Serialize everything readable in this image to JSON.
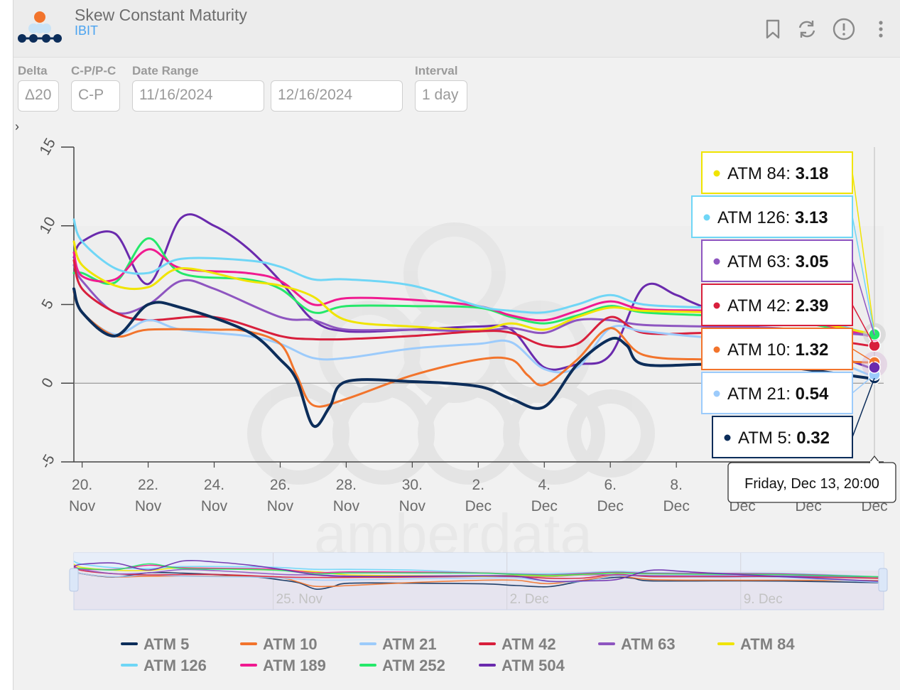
{
  "header": {
    "title": "Skew Constant Maturity",
    "subtitle": "IBIT",
    "icons": [
      "bookmark-icon",
      "refresh-icon",
      "info-icon",
      "more-menu-icon"
    ]
  },
  "controls": {
    "delta": {
      "label": "Delta",
      "value": "Δ20"
    },
    "cp": {
      "label": "C-P/P-C",
      "value": "C-P"
    },
    "date_range": {
      "label": "Date Range",
      "start": "11/16/2024",
      "end": "12/16/2024"
    },
    "interval": {
      "label": "Interval",
      "value": "1 day"
    }
  },
  "expander": "›",
  "watermark": "amberdata",
  "chart_data": {
    "type": "line",
    "x_label_dates": [
      "2024-11-20",
      "2024-11-22",
      "2024-11-24",
      "2024-11-26",
      "2024-11-28",
      "2024-11-30",
      "2024-12-02",
      "2024-12-04",
      "2024-12-06",
      "2024-12-08",
      "2024-12-10",
      "2024-12-12",
      "2024-12-14"
    ],
    "x_tick_lines": [
      [
        "20.",
        "Nov"
      ],
      [
        "22.",
        "Nov"
      ],
      [
        "24.",
        "Nov"
      ],
      [
        "26.",
        "Nov"
      ],
      [
        "28.",
        "Nov"
      ],
      [
        "30.",
        "Nov"
      ],
      [
        "2.",
        "Dec"
      ],
      [
        "4.",
        "Dec"
      ],
      [
        "6.",
        "Dec"
      ],
      [
        "8.",
        "Dec"
      ],
      [
        "",
        "Dec"
      ],
      [
        "",
        "Dec"
      ],
      [
        "",
        "Dec"
      ]
    ],
    "y_ticks": [
      15,
      10,
      5,
      0,
      -5
    ],
    "ylim": [
      -5,
      15
    ],
    "xlim": [
      "2024-11-19T18:00",
      "2024-12-14T00:00"
    ],
    "grid": false,
    "legend_position": "bottom",
    "tooltip": {
      "header": "Friday, Dec 13, 20:00",
      "items": [
        {
          "name": "ATM 84",
          "value": "3.18",
          "color": "#f0e400"
        },
        {
          "name": "ATM 126",
          "value": "3.13",
          "color": "#6fd6f6"
        },
        {
          "name": "ATM 63",
          "value": "3.05",
          "color": "#8e55c0"
        },
        {
          "name": "ATM 42",
          "value": "2.39",
          "color": "#d81f3c"
        },
        {
          "name": "ATM 10",
          "value": "1.32",
          "color": "#f2742c"
        },
        {
          "name": "ATM 21",
          "value": "0.54",
          "color": "#9ccbfb"
        },
        {
          "name": "ATM 5",
          "value": "0.32",
          "color": "#0c2d5a"
        }
      ]
    },
    "navigator_ticks": [
      "25. Nov",
      "2. Dec",
      "9. Dec"
    ],
    "series": [
      {
        "name": "ATM 5",
        "color": "#0c2d5a",
        "width": 4,
        "x": [
          "2024-11-19T18:00",
          "2024-11-20",
          "2024-11-21",
          "2024-11-22",
          "2024-11-23",
          "2024-11-25",
          "2024-11-26",
          "2024-11-26T12:00",
          "2024-11-27",
          "2024-11-27T12:00",
          "2024-11-28",
          "2024-11-30",
          "2024-12-02",
          "2024-12-03",
          "2024-12-04",
          "2024-12-05",
          "2024-12-06",
          "2024-12-06T12:00",
          "2024-12-07",
          "2024-12-09",
          "2024-12-11",
          "2024-12-13T20:00"
        ],
        "y": [
          6.0,
          4.5,
          3.0,
          5.0,
          4.8,
          3.3,
          1.5,
          0.2,
          -2.7,
          -1.5,
          0.1,
          0.1,
          -0.2,
          -1.0,
          -1.5,
          1.2,
          2.8,
          2.4,
          1.2,
          1.2,
          1.1,
          0.32
        ]
      },
      {
        "name": "ATM 10",
        "color": "#f2742c",
        "width": 3,
        "x": [
          "2024-11-19T18:00",
          "2024-11-20",
          "2024-11-21",
          "2024-11-22",
          "2024-11-24",
          "2024-11-25",
          "2024-11-26",
          "2024-11-26T12:00",
          "2024-11-27",
          "2024-11-28",
          "2024-11-30",
          "2024-12-02",
          "2024-12-03",
          "2024-12-03T12:00",
          "2024-12-04",
          "2024-12-05",
          "2024-12-06",
          "2024-12-07",
          "2024-12-09",
          "2024-12-11",
          "2024-12-13T20:00"
        ],
        "y": [
          5.8,
          4.5,
          3.0,
          3.4,
          3.4,
          3.3,
          2.5,
          0.5,
          -1.4,
          -1.0,
          0.5,
          1.5,
          1.5,
          0.5,
          -0.1,
          1.5,
          3.5,
          1.8,
          1.5,
          1.5,
          1.32
        ]
      },
      {
        "name": "ATM 21",
        "color": "#9ccbfb",
        "width": 3,
        "x": [
          "2024-11-19T18:00",
          "2024-11-20",
          "2024-11-21",
          "2024-11-22",
          "2024-11-23",
          "2024-11-25",
          "2024-11-26",
          "2024-11-27",
          "2024-11-28",
          "2024-11-30",
          "2024-12-02",
          "2024-12-03",
          "2024-12-04",
          "2024-12-05",
          "2024-12-06",
          "2024-12-07",
          "2024-12-09",
          "2024-12-11",
          "2024-12-13T20:00"
        ],
        "y": [
          5.9,
          4.5,
          3.1,
          4.0,
          3.4,
          3.0,
          2.5,
          1.6,
          1.6,
          2.2,
          2.5,
          2.6,
          0.9,
          1.0,
          3.5,
          3.3,
          2.9,
          2.8,
          0.54
        ]
      },
      {
        "name": "ATM 42",
        "color": "#d81f3c",
        "width": 3,
        "x": [
          "2024-11-19T18:00",
          "2024-11-20",
          "2024-11-21",
          "2024-11-22",
          "2024-11-24",
          "2024-11-26",
          "2024-11-27",
          "2024-11-28",
          "2024-11-30",
          "2024-12-02",
          "2024-12-03",
          "2024-12-04",
          "2024-12-05",
          "2024-12-06",
          "2024-12-07",
          "2024-12-09",
          "2024-12-11",
          "2024-12-13T20:00"
        ],
        "y": [
          7.8,
          6.0,
          4.5,
          4.0,
          4.2,
          3.0,
          2.8,
          2.8,
          3.0,
          3.3,
          3.2,
          2.4,
          2.5,
          4.2,
          3.2,
          3.2,
          3.2,
          2.39
        ]
      },
      {
        "name": "ATM 63",
        "color": "#8e55c0",
        "width": 3,
        "x": [
          "2024-11-19T18:00",
          "2024-11-20",
          "2024-11-21",
          "2024-11-22",
          "2024-11-23",
          "2024-11-24",
          "2024-11-26",
          "2024-11-27",
          "2024-11-28",
          "2024-11-30",
          "2024-12-02",
          "2024-12-03",
          "2024-12-04",
          "2024-12-05",
          "2024-12-06",
          "2024-12-07",
          "2024-12-09",
          "2024-12-11",
          "2024-12-13T20:00"
        ],
        "y": [
          7.5,
          6.5,
          4.5,
          5.0,
          6.5,
          6.0,
          4.2,
          4.0,
          3.4,
          3.4,
          3.3,
          3.5,
          3.2,
          4.0,
          4.0,
          3.7,
          3.6,
          3.5,
          3.05
        ]
      },
      {
        "name": "ATM 84",
        "color": "#f0e400",
        "width": 3,
        "x": [
          "2024-11-19T18:00",
          "2024-11-20",
          "2024-11-21",
          "2024-11-22",
          "2024-11-23",
          "2024-11-25",
          "2024-11-26",
          "2024-11-27",
          "2024-11-28",
          "2024-11-30",
          "2024-12-02",
          "2024-12-03",
          "2024-12-04",
          "2024-12-05",
          "2024-12-06",
          "2024-12-07",
          "2024-12-09",
          "2024-12-11",
          "2024-12-13T20:00"
        ],
        "y": [
          9.0,
          7.5,
          6.2,
          6.1,
          7.3,
          6.5,
          6.2,
          5.5,
          4.0,
          3.6,
          3.4,
          3.8,
          3.4,
          4.2,
          4.8,
          4.6,
          4.5,
          4.3,
          3.18
        ]
      },
      {
        "name": "ATM 126",
        "color": "#6fd6f6",
        "width": 3,
        "x": [
          "2024-11-19T18:00",
          "2024-11-20",
          "2024-11-21",
          "2024-11-22",
          "2024-11-23",
          "2024-11-25",
          "2024-11-26",
          "2024-11-27",
          "2024-11-28",
          "2024-11-30",
          "2024-12-02",
          "2024-12-03",
          "2024-12-04",
          "2024-12-05",
          "2024-12-06",
          "2024-12-07",
          "2024-12-09",
          "2024-12-11",
          "2024-12-13T20:00"
        ],
        "y": [
          10.4,
          9.0,
          7.3,
          7.0,
          7.9,
          7.8,
          7.4,
          6.6,
          6.6,
          6.2,
          4.9,
          4.6,
          4.5,
          5.0,
          5.6,
          5.0,
          4.8,
          4.7,
          3.13
        ]
      },
      {
        "name": "ATM 189",
        "color": "#f01a90",
        "width": 3,
        "x": [
          "2024-11-19T18:00",
          "2024-11-20",
          "2024-11-21",
          "2024-11-22",
          "2024-11-23",
          "2024-11-25",
          "2024-11-26",
          "2024-11-27",
          "2024-11-28",
          "2024-11-30",
          "2024-12-02",
          "2024-12-03",
          "2024-12-04",
          "2024-12-05",
          "2024-12-06",
          "2024-12-07",
          "2024-12-09",
          "2024-12-11",
          "2024-12-13T20:00"
        ],
        "y": [
          8.3,
          6.8,
          6.6,
          8.5,
          7.3,
          7.0,
          6.5,
          5.0,
          5.4,
          5.3,
          4.9,
          4.3,
          4.0,
          4.6,
          5.2,
          4.7,
          4.6,
          4.4,
          3.0
        ]
      },
      {
        "name": "ATM 252",
        "color": "#25e86a",
        "width": 3,
        "x": [
          "2024-11-19T18:00",
          "2024-11-20",
          "2024-11-21",
          "2024-11-22",
          "2024-11-23",
          "2024-11-25",
          "2024-11-26",
          "2024-11-27",
          "2024-11-28",
          "2024-11-30",
          "2024-12-02",
          "2024-12-03",
          "2024-12-04",
          "2024-12-05",
          "2024-12-06",
          "2024-12-07",
          "2024-12-09",
          "2024-12-11",
          "2024-12-13T20:00"
        ],
        "y": [
          7.0,
          7.0,
          6.4,
          9.2,
          7.0,
          6.6,
          6.0,
          4.5,
          4.9,
          4.9,
          4.8,
          4.2,
          3.8,
          4.3,
          4.9,
          4.5,
          4.3,
          4.1,
          3.1
        ]
      },
      {
        "name": "ATM 504",
        "color": "#6a2aad",
        "width": 3,
        "x": [
          "2024-11-19T18:00",
          "2024-11-20",
          "2024-11-21",
          "2024-11-22",
          "2024-11-23",
          "2024-11-24",
          "2024-11-25",
          "2024-11-26",
          "2024-11-27",
          "2024-11-28",
          "2024-11-30",
          "2024-12-02",
          "2024-12-03",
          "2024-12-04",
          "2024-12-05",
          "2024-12-06",
          "2024-12-07",
          "2024-12-08",
          "2024-12-09",
          "2024-12-13T20:00"
        ],
        "y": [
          8.0,
          9.0,
          9.5,
          6.3,
          10.5,
          10.0,
          8.6,
          6.5,
          4.0,
          3.3,
          3.4,
          3.6,
          3.4,
          1.0,
          1.2,
          1.8,
          6.1,
          5.6,
          4.7,
          1.0
        ]
      }
    ]
  }
}
